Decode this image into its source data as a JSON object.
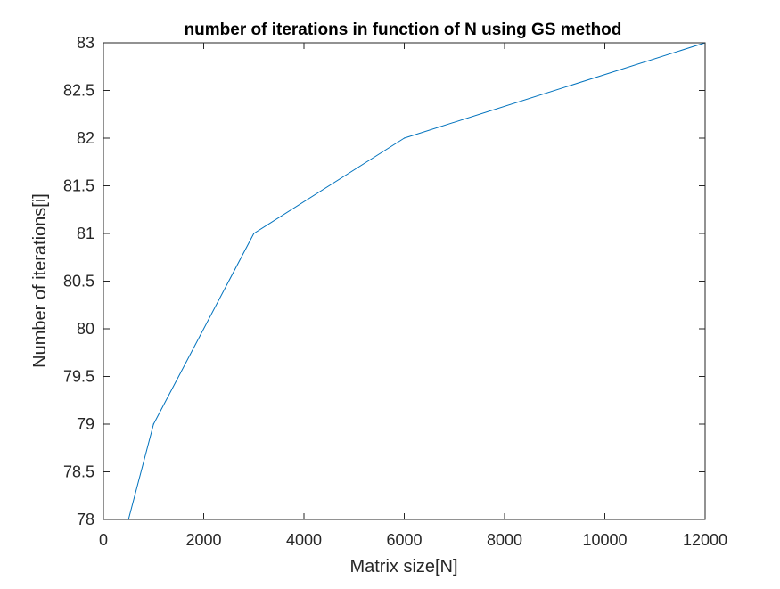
{
  "chart_data": {
    "type": "line",
    "title": "number of iterations in function of N using GS method",
    "xlabel": "Matrix size[N]",
    "ylabel": "Number of iterations[i]",
    "xlim": [
      0,
      12000
    ],
    "ylim": [
      78,
      83
    ],
    "xticks": [
      0,
      2000,
      4000,
      6000,
      8000,
      10000,
      12000
    ],
    "xtick_labels": [
      "0",
      "2000",
      "4000",
      "6000",
      "8000",
      "10000",
      "12000"
    ],
    "yticks": [
      78,
      78.5,
      79,
      79.5,
      80,
      80.5,
      81,
      81.5,
      82,
      82.5,
      83
    ],
    "ytick_labels": [
      "78",
      "78.5",
      "79",
      "79.5",
      "80",
      "80.5",
      "81",
      "81.5",
      "82",
      "82.5",
      "83"
    ],
    "grid": false,
    "series": [
      {
        "x": [
          500,
          1000,
          3000,
          6000,
          12000
        ],
        "y": [
          78,
          79,
          81,
          82,
          83
        ],
        "color": "#0072BD"
      }
    ]
  }
}
